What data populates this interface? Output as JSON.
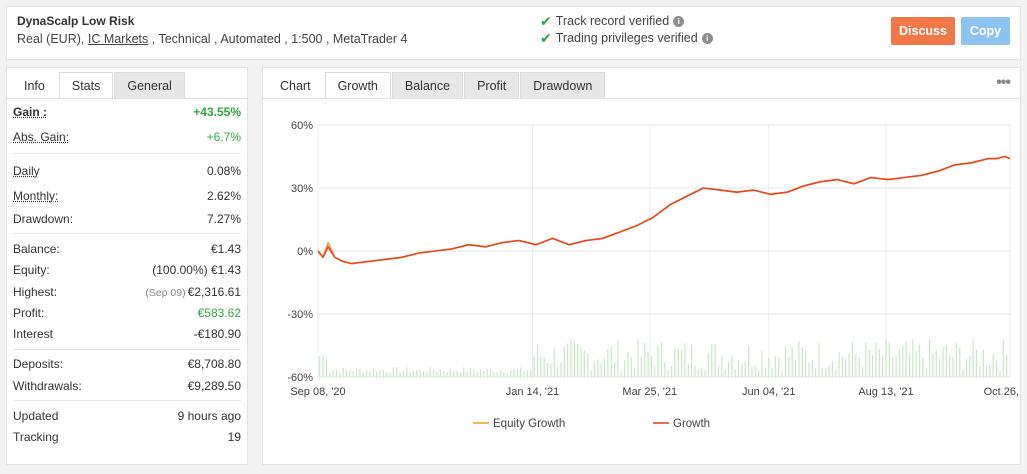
{
  "header": {
    "system_name": "DynaScalp Low Risk",
    "subtitle_pre": "Real (EUR), ",
    "broker": "IC Markets",
    "subtitle_post": " , Technical , Automated , 1:500 , MetaTrader 4",
    "verified1": "Track record verified",
    "verified2": "Trading privileges verified",
    "discuss_label": "Discuss",
    "copy_label": "Copy"
  },
  "left_tabs": {
    "info": "Info",
    "stats": "Stats",
    "general": "General"
  },
  "stats": {
    "gain": {
      "label": "Gain :",
      "value": "+43.55%"
    },
    "abs_gain": {
      "label": "Abs. Gain:",
      "value": "+6.7%"
    },
    "daily": {
      "label": "Daily",
      "value": "0.08%"
    },
    "monthly": {
      "label": "Monthly:",
      "value": "2.62%"
    },
    "drawdown": {
      "label": "Drawdown:",
      "value": "7.27%"
    },
    "balance": {
      "label": "Balance:",
      "value": "€1.43"
    },
    "equity": {
      "label": "Equity:",
      "value": "(100.00%) €1.43"
    },
    "highest": {
      "label": "Highest:",
      "note": "(Sep 09)",
      "value": "€2,316.61"
    },
    "profit": {
      "label": "Profit:",
      "value": "€583.62"
    },
    "interest": {
      "label": "Interest",
      "value": "-€180.90"
    },
    "deposits": {
      "label": "Deposits:",
      "value": "€8,708.80"
    },
    "withdrawals": {
      "label": "Withdrawals:",
      "value": "€9,289.50"
    },
    "updated": {
      "label": "Updated",
      "value": "9 hours ago"
    },
    "tracking": {
      "label": "Tracking",
      "value": "19"
    }
  },
  "chart_tabs": {
    "chart": "Chart",
    "growth": "Growth",
    "balance": "Balance",
    "profit": "Profit",
    "drawdown": "Drawdown"
  },
  "colors": {
    "growth": "#e8461d",
    "equity": "#f0a53a",
    "volume": "#c7e8c6",
    "positive": "#2eaa3c"
  },
  "chart_data": {
    "type": "line",
    "ylim": [
      -60,
      60
    ],
    "yticks": [
      "60%",
      "30%",
      "0%",
      "-30%",
      "-60%"
    ],
    "ytick_values": [
      60,
      30,
      0,
      -30,
      -60
    ],
    "xticks": [
      "Sep 08, '20",
      "Jan 14, '21",
      "Mar 25, '21",
      "Jun 04, '21",
      "Aug 13, '21",
      "Oct 26, '21"
    ],
    "x_range_days": [
      0,
      413
    ],
    "xtick_days": [
      0,
      128,
      198,
      269,
      339,
      413
    ],
    "series": [
      {
        "name": "Growth",
        "x_days": [
          0,
          3,
          6,
          10,
          15,
          20,
          30,
          40,
          50,
          60,
          70,
          80,
          90,
          100,
          110,
          120,
          130,
          140,
          150,
          160,
          170,
          180,
          190,
          200,
          210,
          220,
          230,
          240,
          250,
          260,
          270,
          280,
          290,
          300,
          310,
          320,
          330,
          340,
          350,
          360,
          370,
          380,
          390,
          400,
          405,
          410,
          413
        ],
        "values": [
          0,
          -3,
          2,
          -3,
          -5,
          -6,
          -5,
          -4,
          -3,
          -1,
          0,
          1,
          3,
          2,
          4,
          5,
          3,
          6,
          3,
          5,
          6,
          9,
          12,
          16,
          22,
          26,
          30,
          29,
          28,
          29,
          27,
          28,
          31,
          33,
          34,
          32,
          35,
          34,
          35,
          36,
          38,
          41,
          42,
          44,
          44,
          45,
          44
        ]
      },
      {
        "name": "Equity Growth",
        "x_days": [
          0,
          3,
          6,
          10,
          15,
          20,
          30,
          40,
          50,
          60,
          70,
          80,
          90,
          100,
          110,
          120,
          130,
          140,
          150,
          160,
          170,
          180,
          190,
          200,
          210,
          220,
          230,
          240,
          250,
          260,
          270,
          280,
          290,
          300,
          310,
          320,
          330,
          340,
          350,
          360,
          370,
          380,
          390,
          400,
          405,
          410,
          413
        ],
        "values": [
          0,
          -3,
          4,
          -3,
          -5,
          -6,
          -5,
          -4,
          -3,
          -1,
          0,
          1,
          3,
          2,
          4,
          5,
          3,
          6,
          3,
          5,
          6,
          9,
          12,
          16,
          22,
          26,
          30,
          29,
          28,
          29,
          27,
          28,
          31,
          33,
          34,
          32,
          35,
          34,
          35,
          36,
          38,
          41,
          42,
          44,
          44,
          45,
          44
        ]
      }
    ],
    "legend": [
      "Equity Growth",
      "Growth"
    ],
    "legend_position": "bottom"
  }
}
